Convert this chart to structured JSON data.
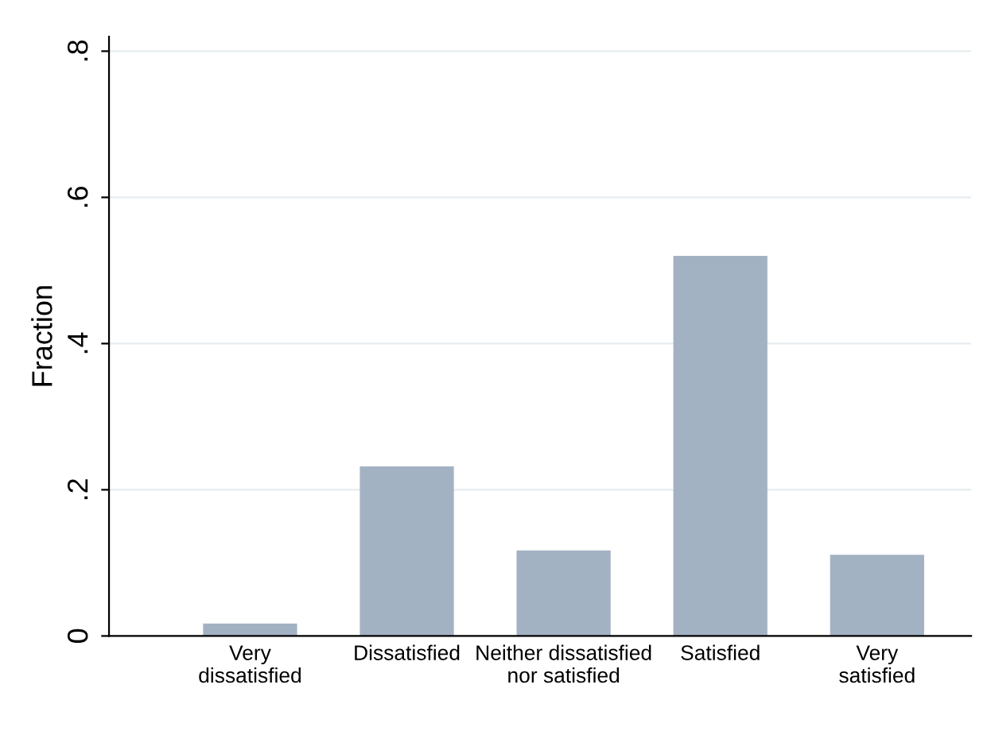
{
  "chart_data": {
    "type": "bar",
    "ylabel": "Fraction",
    "categories": [
      "Very\ndissatisfied",
      "Dissatisfied",
      "Neither dissatisfied\nnor satisfied",
      "Satisfied",
      "Very\nsatisfied"
    ],
    "values": [
      0.017,
      0.232,
      0.117,
      0.52,
      0.111
    ],
    "color": "#a3b2c2",
    "ylim": [
      0,
      0.82
    ],
    "yticks": [
      {
        "value": 0,
        "label": "0"
      },
      {
        "value": 0.2,
        "label": ".2"
      },
      {
        "value": 0.4,
        "label": ".4"
      },
      {
        "value": 0.6,
        "label": ".6"
      },
      {
        "value": 0.8,
        "label": ".8"
      }
    ],
    "grid": "y"
  }
}
